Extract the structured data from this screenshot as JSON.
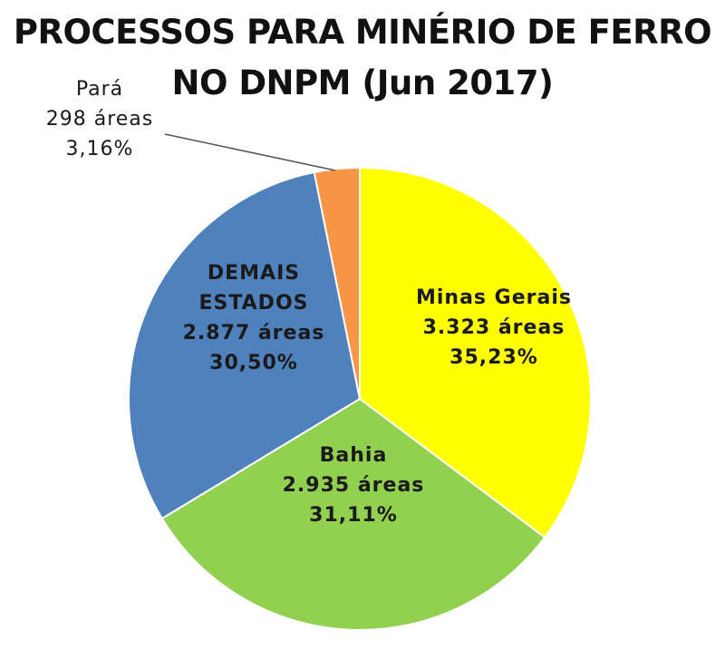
{
  "chart_data": {
    "type": "pie",
    "title": "PROCESSOS PARA MINÉRIO DE FERRO NO DNPM (Jun 2017)",
    "categories": [
      "Minas Gerais",
      "Bahia",
      "DEMAIS ESTADOS",
      "Pará"
    ],
    "values": [
      35.23,
      31.11,
      30.5,
      3.16
    ],
    "value_labels": [
      "35,23%",
      "31,11%",
      "30,50%",
      "3,16%"
    ],
    "area_labels": [
      "3.323 áreas",
      "2.935 áreas",
      "2.877 áreas",
      "298 áreas"
    ],
    "colors": [
      "#ffff00",
      "#92d050",
      "#4f81bd",
      "#f79646"
    ]
  }
}
